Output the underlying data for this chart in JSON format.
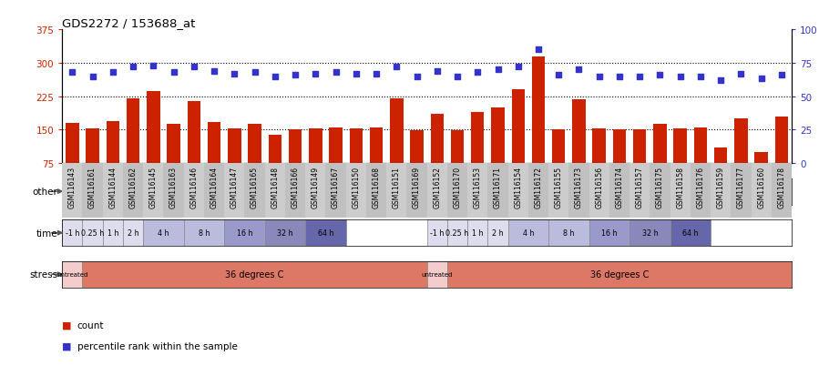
{
  "title": "GDS2272 / 153688_at",
  "samples": [
    "GSM116143",
    "GSM116161",
    "GSM116144",
    "GSM116162",
    "GSM116145",
    "GSM116163",
    "GSM116146",
    "GSM116164",
    "GSM116147",
    "GSM116165",
    "GSM116148",
    "GSM116166",
    "GSM116149",
    "GSM116167",
    "GSM116150",
    "GSM116168",
    "GSM116151",
    "GSM116169",
    "GSM116152",
    "GSM116170",
    "GSM116153",
    "GSM116171",
    "GSM116154",
    "GSM116172",
    "GSM116155",
    "GSM116173",
    "GSM116156",
    "GSM116174",
    "GSM116157",
    "GSM116175",
    "GSM116158",
    "GSM116176",
    "GSM116159",
    "GSM116177",
    "GSM116160",
    "GSM116178"
  ],
  "counts": [
    165,
    153,
    170,
    220,
    237,
    163,
    215,
    168,
    152,
    163,
    138,
    151,
    152,
    154,
    152,
    155,
    220,
    148,
    185,
    148,
    190,
    200,
    240,
    315,
    150,
    218,
    152,
    150,
    150,
    162,
    153,
    155,
    110,
    175,
    100,
    180
  ],
  "percentile_ranks": [
    68,
    65,
    68,
    72,
    73,
    68,
    72,
    69,
    67,
    68,
    65,
    66,
    67,
    68,
    67,
    67,
    72,
    65,
    69,
    65,
    68,
    70,
    72,
    85,
    66,
    70,
    65,
    65,
    65,
    66,
    65,
    65,
    62,
    67,
    63,
    66
  ],
  "bar_color": "#cc2200",
  "dot_color": "#3333cc",
  "ylim_left": [
    75,
    375
  ],
  "ylim_right": [
    0,
    100
  ],
  "yticks_left": [
    75,
    150,
    225,
    300,
    375
  ],
  "yticks_right": [
    0,
    25,
    50,
    75,
    100
  ],
  "grid_lines": [
    150,
    225,
    300
  ],
  "tick_label_color_left": "#cc2200",
  "tick_label_color_right": "#3333cc",
  "n_samples": 36,
  "control_color": "#aaddaa",
  "heat_color": "#55cc55",
  "other_label": "other",
  "time_label": "time",
  "stress_label": "stress",
  "time_values": [
    "-1 h",
    "0.25 h",
    "1 h",
    "2 h",
    "4 h",
    "8 h",
    "16 h",
    "32 h",
    "64 h"
  ],
  "time_widths": [
    1,
    1,
    1,
    1,
    2,
    2,
    2,
    2,
    2
  ],
  "time_colors": [
    "#ddddee",
    "#ddddee",
    "#ddddee",
    "#ddddee",
    "#bbbbdd",
    "#bbbbdd",
    "#9999cc",
    "#8888bb",
    "#6666aa"
  ],
  "stress_untreated_color": "#f5cccc",
  "stress_36deg_color": "#dd7766",
  "legend_count_color": "#cc2200",
  "legend_pct_color": "#3333cc",
  "xtick_bg": "#cccccc"
}
